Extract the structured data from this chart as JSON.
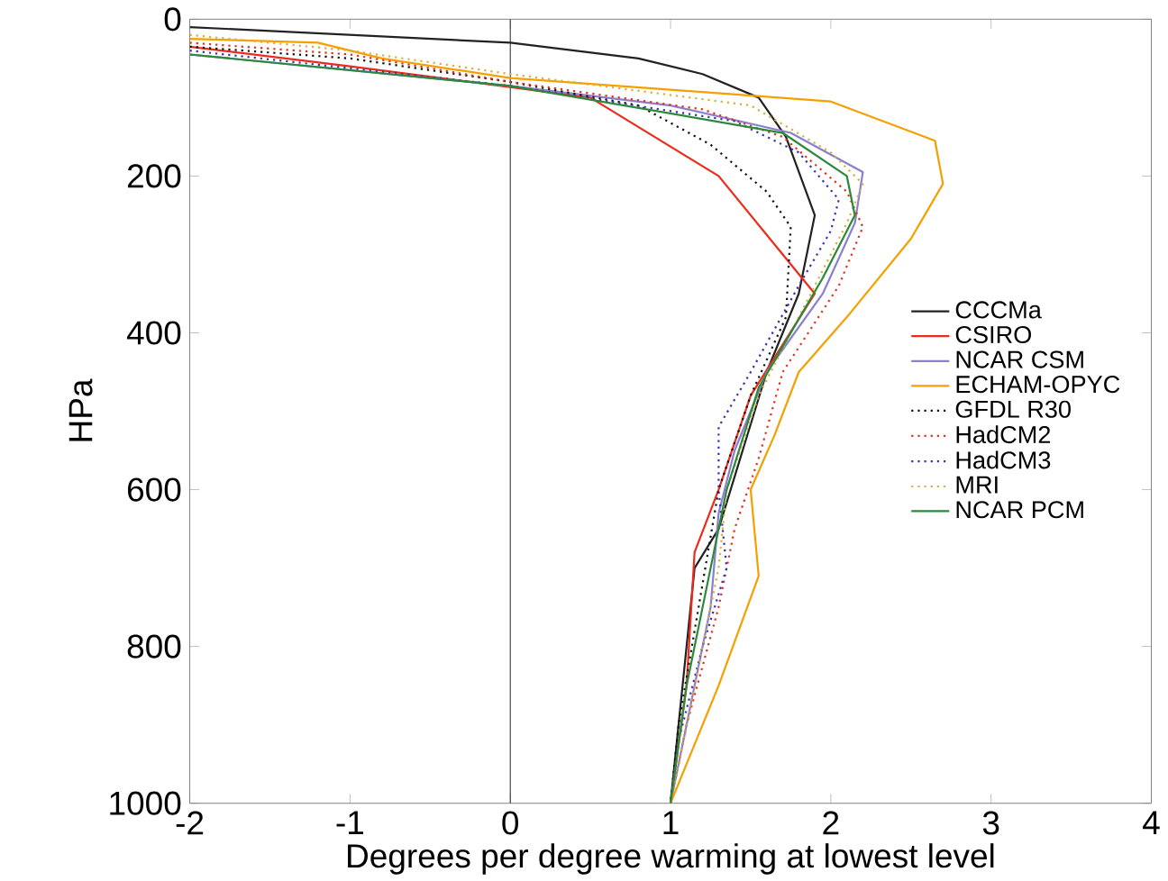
{
  "chart_data": {
    "type": "line",
    "xlabel": "Degrees per degree warming at lowest level",
    "ylabel": "HPa",
    "xlim": [
      -2,
      4
    ],
    "xticks": [
      -2,
      -1,
      0,
      1,
      2,
      3,
      4
    ],
    "ylim": [
      1000,
      0
    ],
    "yticks": [
      0,
      200,
      400,
      600,
      800,
      1000
    ],
    "grid": false,
    "legend": "right",
    "marker": "none",
    "ref_lines": [
      {
        "axis": "x",
        "value": 0,
        "color": "#222222",
        "line_style": "solid"
      }
    ],
    "series": [
      {
        "name": "CCCMa",
        "color": "#222222",
        "line_style": "solid",
        "x": [
          -2,
          0,
          0.8,
          1.2,
          1.55,
          1.72,
          1.9,
          1.8,
          1.6,
          1.45,
          1.3,
          1.15,
          1.05,
          1.0
        ],
        "values": [
          10,
          30,
          50,
          70,
          100,
          150,
          250,
          350,
          450,
          550,
          650,
          700,
          900,
          1000
        ]
      },
      {
        "name": "CSIRO",
        "color": "#ee2a1a",
        "line_style": "solid",
        "x": [
          -2,
          -1,
          0.5,
          1.3,
          1.9,
          1.5,
          1.3,
          1.15,
          1.1,
          1.0
        ],
        "values": [
          35,
          60,
          100,
          200,
          350,
          480,
          600,
          680,
          850,
          1000
        ]
      },
      {
        "name": "NCAR CSM",
        "color": "#8a7fd0",
        "line_style": "solid",
        "x": [
          -2,
          0,
          1.0,
          1.75,
          2.2,
          2.15,
          1.95,
          1.6,
          1.4,
          1.3,
          1.25,
          1.1,
          1.0
        ],
        "values": [
          45,
          85,
          110,
          145,
          195,
          260,
          350,
          450,
          550,
          630,
          750,
          900,
          1000
        ]
      },
      {
        "name": "ECHAM-OPYC",
        "color": "#f5a000",
        "line_style": "solid",
        "x": [
          -2,
          -1.2,
          -0.8,
          0,
          1.0,
          2.0,
          2.65,
          2.7,
          2.5,
          2.1,
          1.8,
          1.65,
          1.5,
          1.55,
          1.3,
          1.1,
          1.0
        ],
        "values": [
          25,
          30,
          50,
          75,
          90,
          105,
          155,
          210,
          280,
          380,
          450,
          530,
          600,
          710,
          850,
          950,
          1000
        ]
      },
      {
        "name": "GFDL R30",
        "color": "#111111",
        "line_style": "dotted",
        "x": [
          -2,
          -1,
          0,
          0.8,
          1.25,
          1.6,
          1.75,
          1.72,
          1.5,
          1.3,
          1.2,
          1.05,
          1.0
        ],
        "values": [
          35,
          50,
          80,
          110,
          160,
          220,
          265,
          380,
          480,
          600,
          720,
          900,
          1000
        ]
      },
      {
        "name": "HadCM2",
        "color": "#e03020",
        "line_style": "dotted",
        "x": [
          -2,
          -1,
          0,
          1.2,
          1.7,
          2.1,
          2.2,
          2.05,
          1.7,
          1.55,
          1.4,
          1.3,
          1.1,
          1.0
        ],
        "values": [
          30,
          45,
          80,
          115,
          150,
          220,
          265,
          340,
          450,
          560,
          650,
          750,
          900,
          1000
        ]
      },
      {
        "name": "HadCM3",
        "color": "#3a30b0",
        "line_style": "dotted",
        "x": [
          -2,
          0,
          1.4,
          1.8,
          2.05,
          2.0,
          1.8,
          1.5,
          1.3,
          1.3,
          1.35,
          1.2,
          1.05,
          1.0
        ],
        "values": [
          40,
          85,
          130,
          170,
          230,
          270,
          340,
          450,
          520,
          600,
          700,
          800,
          920,
          1000
        ]
      },
      {
        "name": "MRI",
        "color": "#d8b040",
        "line_style": "dotted",
        "x": [
          -2,
          -1,
          0,
          1.5,
          2.0,
          2.2,
          2.1,
          1.8,
          1.55,
          1.35,
          1.3,
          1.15,
          1.0
        ],
        "values": [
          20,
          40,
          70,
          110,
          170,
          210,
          260,
          380,
          480,
          600,
          700,
          850,
          1000
        ]
      },
      {
        "name": "NCAR PCM",
        "color": "#2a8a3a",
        "line_style": "solid",
        "x": [
          -2,
          0,
          1.7,
          2.1,
          2.15,
          1.95,
          1.55,
          1.35,
          1.25,
          1.1,
          1.0
        ],
        "values": [
          45,
          85,
          145,
          200,
          250,
          330,
          470,
          600,
          700,
          850,
          1000
        ]
      }
    ]
  }
}
